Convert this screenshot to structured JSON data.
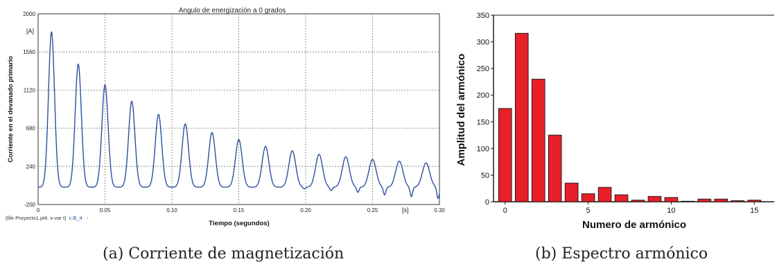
{
  "captions": {
    "a": "(a) Corriente de magnetización",
    "b": "(b) Espectro armónico"
  },
  "chart_data": [
    {
      "type": "line",
      "title": "Angulo de energización a 0 grados",
      "xlabel": "Tiempo (segundos)",
      "ylabel": "Corriente en el devanado primario",
      "x_unit_label": "[s]",
      "y_unit_label": "[A]",
      "footer": "(file Proyecto1.pl4; x-var t)",
      "series_label": "c:B_4",
      "series_label_extra": "-",
      "xlim": [
        0,
        0.3
      ],
      "ylim": [
        -200,
        2000
      ],
      "x_ticks": [
        "0",
        "0.05",
        "0.10",
        "0.15",
        "0.20",
        "0.25",
        "0.30"
      ],
      "y_ticks": [
        "-200",
        "240",
        "680",
        "1120",
        "1560",
        "2000"
      ],
      "grid": true,
      "line_color": "#2b4fa0",
      "baseline": 0,
      "peaks": [
        {
          "t": 0.01,
          "value": 1790
        },
        {
          "t": 0.03,
          "value": 1420
        },
        {
          "t": 0.05,
          "value": 1180
        },
        {
          "t": 0.07,
          "value": 990
        },
        {
          "t": 0.09,
          "value": 840
        },
        {
          "t": 0.11,
          "value": 730
        },
        {
          "t": 0.13,
          "value": 630
        },
        {
          "t": 0.15,
          "value": 550
        },
        {
          "t": 0.17,
          "value": 470
        },
        {
          "t": 0.19,
          "value": 420
        },
        {
          "t": 0.21,
          "value": 380
        },
        {
          "t": 0.23,
          "value": 350
        },
        {
          "t": 0.25,
          "value": 320
        },
        {
          "t": 0.27,
          "value": 300
        },
        {
          "t": 0.29,
          "value": 280
        }
      ],
      "dips": [
        {
          "t": 0.199,
          "value": -20
        },
        {
          "t": 0.219,
          "value": -40
        },
        {
          "t": 0.239,
          "value": -60
        },
        {
          "t": 0.259,
          "value": -90
        },
        {
          "t": 0.279,
          "value": -110
        },
        {
          "t": 0.299,
          "value": -130
        }
      ]
    },
    {
      "type": "bar",
      "xlabel": "Numero de armónico",
      "ylabel": "Amplitud del armónico",
      "bar_color": "#e8202a",
      "x_ticks": [
        "0",
        "5",
        "10",
        "15"
      ],
      "y_ticks": [
        "0",
        "50",
        "100",
        "150",
        "200",
        "250",
        "300",
        "350"
      ],
      "xlim": [
        -0.7,
        16.2
      ],
      "ylim": [
        0,
        350
      ],
      "categories": [
        0,
        1,
        2,
        3,
        4,
        5,
        6,
        7,
        8,
        9,
        10,
        11,
        12,
        13,
        14,
        15
      ],
      "values": [
        175,
        316,
        230,
        125,
        35,
        15,
        27,
        13,
        3,
        10,
        8,
        1,
        5,
        5,
        2,
        3
      ]
    }
  ]
}
